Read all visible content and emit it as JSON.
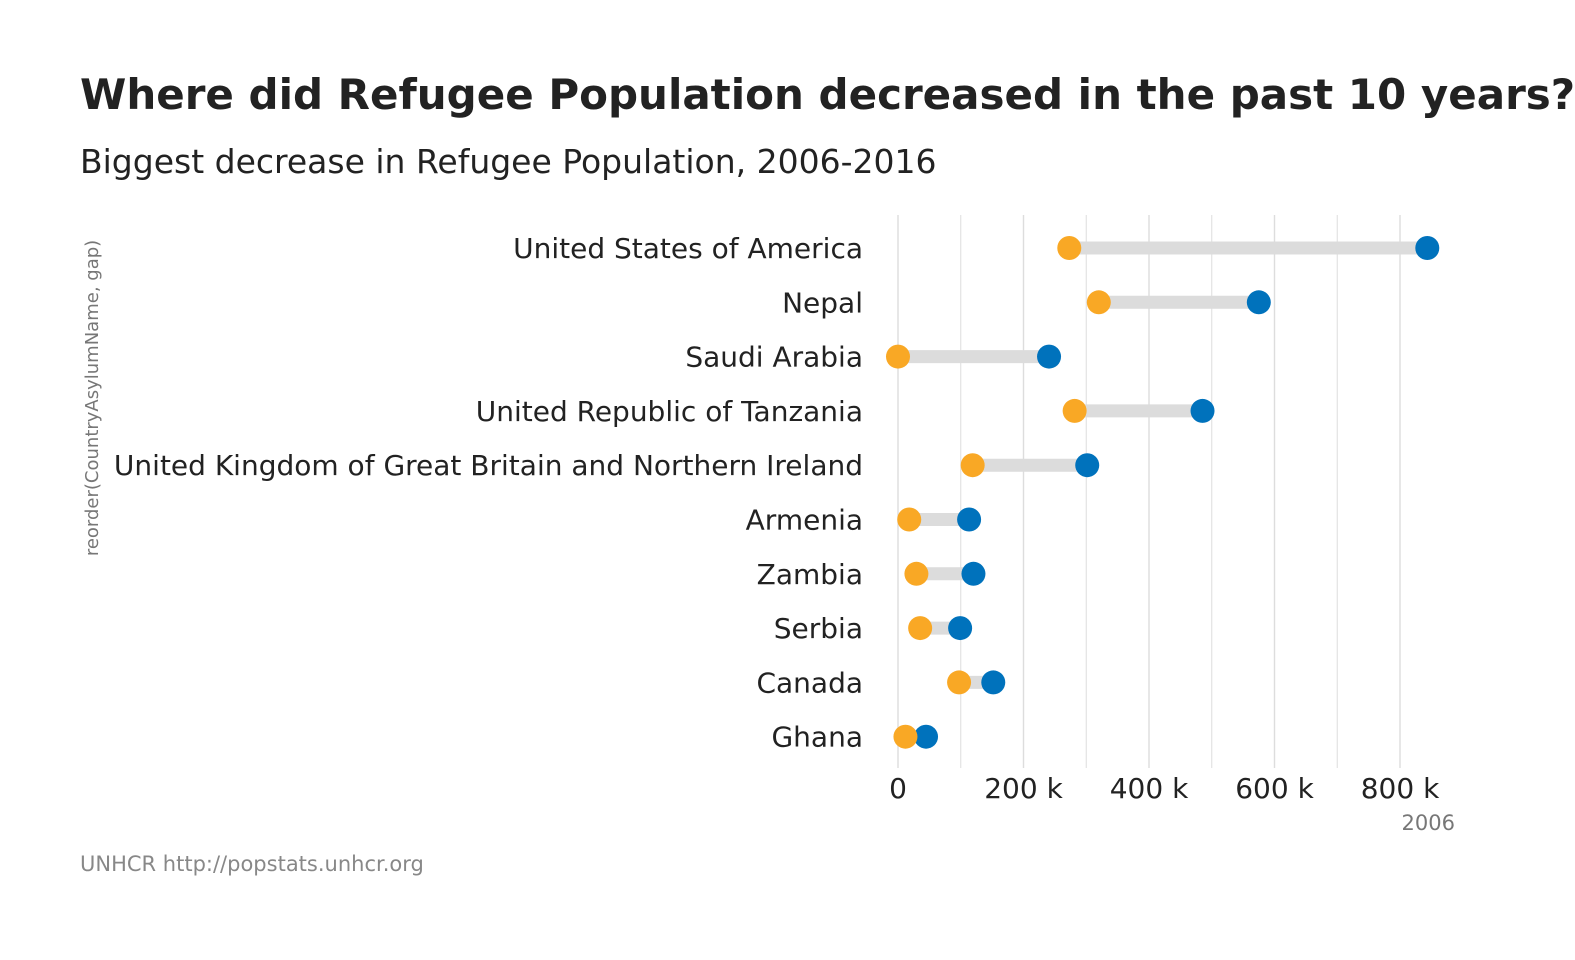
{
  "chart_data": {
    "type": "dumbbell",
    "title": "Where did Refugee Population decreased in the past 10 years?",
    "subtitle": "Biggest decrease in Refugee Population, 2006-2016",
    "caption": "UNHCR http://popstats.unhcr.org",
    "xlabel": "2006",
    "ylabel": "reorder(CountryAsylumName, gap)",
    "xlim": [
      0,
      850000
    ],
    "x_ticks": [
      0,
      200000,
      400000,
      600000,
      800000
    ],
    "x_tick_labels": [
      "0",
      "200 k",
      "400 k",
      "600 k",
      "800 k"
    ],
    "grid": true,
    "colors": {
      "2016": "#F9A825",
      "2006": "#0072BC",
      "segment": "#DCDCDC",
      "grid": "#DDDDDD"
    },
    "categories": [
      "United States of America",
      "Nepal",
      "Saudi Arabia",
      "United Republic of Tanzania",
      "United Kingdom of Great Britain and Northern Ireland",
      "Armenia",
      "Zambia",
      "Serbia",
      "Canada",
      "Ghana"
    ],
    "series": [
      {
        "values": [
          272959,
          320000,
          0,
          281500,
          118995,
          17899,
          29350,
          35300,
          97322,
          11865
        ]
      },
      {
        "values": [
          843498,
          575000,
          240701,
          485295,
          301556,
          113295,
          120253,
          98997,
          151827,
          44660
        ]
      }
    ]
  }
}
